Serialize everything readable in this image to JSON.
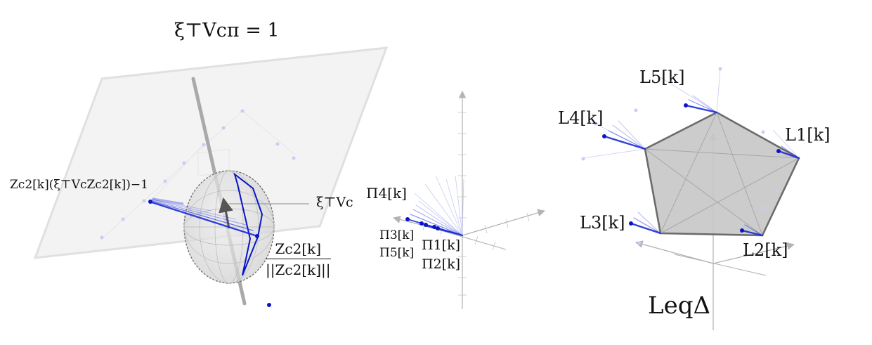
{
  "labels": {
    "plane_eq": "ξ⊤Vcπ = 1",
    "normal": "ξ⊤Vc",
    "projection": "Zc2[k](ξ⊤VcZc2[k])−1",
    "normalized_num": "Zc2[k]",
    "normalized_den": "||Zc2[k]||",
    "pi4": "Π4[k]",
    "pi3": "Π3[k]",
    "pi5": "Π5[k]",
    "pi1": "Π1[k]",
    "pi2": "Π2[k]",
    "l1": "L1[k]",
    "l2": "L2[k]",
    "l3": "L3[k]",
    "l4": "L4[k]",
    "l5": "L5[k]",
    "leq": "LeqΔ"
  },
  "colors": {
    "plane_fill": "#f1f1f1",
    "plane_edge": "#e2e2e2",
    "sphere_fill": "#d9d9d9",
    "polygon_fill": "#c8c8c8",
    "polygon_edge": "#6b6b6b",
    "trajectory": "#0a14c8",
    "axis": "#a8a8a8"
  },
  "icons": {
    "axis_arrow": "triangle-arrow",
    "trajectory_marker": "filled-dot"
  }
}
